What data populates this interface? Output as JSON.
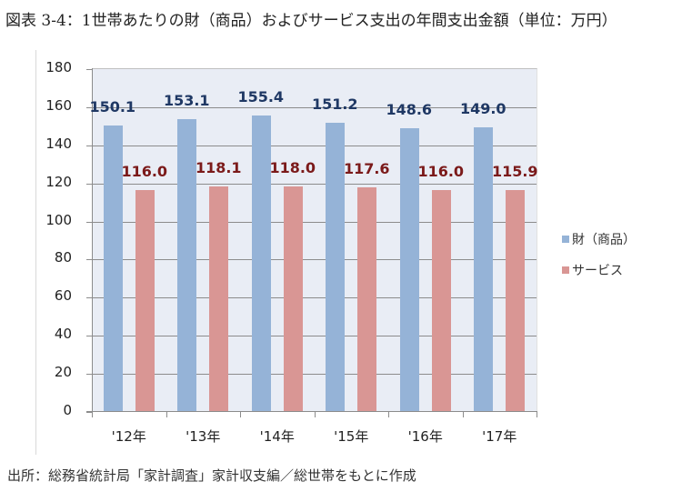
{
  "title": "図表 3-4：1世帯あたりの財（商品）およびサービス支出の年間支出金額（単位：万円）",
  "source": "出所：総務省統計局「家計調査」家計収支編／総世帯をもとに作成",
  "legend": [
    {
      "label": "財（商品）",
      "color": "#95b3d7"
    },
    {
      "label": "サービス",
      "color": "#d99694"
    }
  ],
  "y_ticks": [
    "180",
    "160",
    "140",
    "120",
    "100",
    "80",
    "60",
    "40",
    "20",
    "0"
  ],
  "x_labels": [
    "'12年",
    "'13年",
    "'14年",
    "'15年",
    "'16年",
    "'17年"
  ],
  "goods_labels": [
    "150.1",
    "153.1",
    "155.4",
    "151.2",
    "148.6",
    "149.0"
  ],
  "services_labels": [
    "116.0",
    "118.1",
    "118.0",
    "117.6",
    "116.0",
    "115.9"
  ],
  "chart_data": {
    "type": "bar",
    "title": "図表 3-4：1世帯あたりの財（商品）およびサービス支出の年間支出金額（単位：万円）",
    "categories": [
      "'12年",
      "'13年",
      "'14年",
      "'15年",
      "'16年",
      "'17年"
    ],
    "series": [
      {
        "name": "財（商品）",
        "color": "#95b3d7",
        "values": [
          150.1,
          153.1,
          155.4,
          151.2,
          148.6,
          149.0
        ]
      },
      {
        "name": "サービス",
        "color": "#d99694",
        "values": [
          116.0,
          118.1,
          118.0,
          117.6,
          116.0,
          115.9
        ]
      }
    ],
    "xlabel": "",
    "ylabel": "万円",
    "ylim": [
      0,
      180
    ],
    "yticks": [
      0,
      20,
      40,
      60,
      80,
      100,
      120,
      140,
      160,
      180
    ],
    "grid": true,
    "legend_position": "right",
    "data_labels": true
  }
}
